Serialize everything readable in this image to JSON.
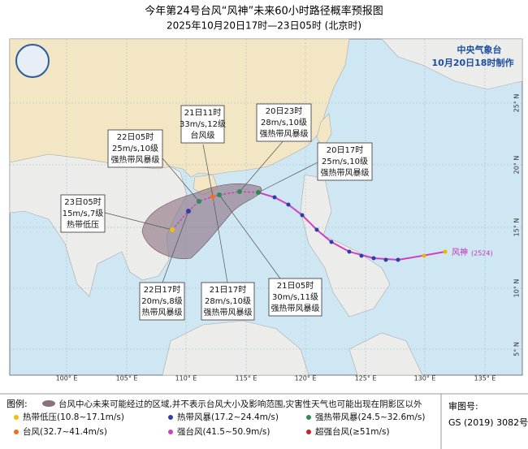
{
  "header": {
    "title": "今年第24号台风“风神”未来60小时路径概率预报图",
    "subtitle": "2025年10月20日17时—23日05时 (北京时)",
    "agency": "中央气象台",
    "made": "10月20日18时制作"
  },
  "storm_label": "风神",
  "storm_id": "(2524)",
  "forecasts": [
    {
      "time": "21日11时",
      "wind": "33m/s,12级",
      "level": "台风级"
    },
    {
      "time": "20日23时",
      "wind": "28m/s,10级",
      "level": "强热带风暴级"
    },
    {
      "time": "22日05时",
      "wind": "25m/s,10级",
      "level": "强热带风暴级"
    },
    {
      "time": "20日17时",
      "wind": "25m/s,10级",
      "level": "强热带风暴级"
    },
    {
      "time": "23日05时",
      "wind": "15m/s,7级",
      "level": "热带低压"
    },
    {
      "time": "22日17时",
      "wind": "20m/s,8级",
      "level": "热带风暴级"
    },
    {
      "time": "21日17时",
      "wind": "28m/s,10级",
      "level": "强热带风暴级"
    },
    {
      "time": "21日05时",
      "wind": "30m/s,11级",
      "level": "强热带风暴级"
    }
  ],
  "lon_labels": [
    "100° E",
    "105° E",
    "110° E",
    "115° E",
    "120° E",
    "125° E",
    "130° E",
    "135° E"
  ],
  "lat_labels": [
    "25° N",
    "20° N",
    "15° N",
    "10° N",
    "5° N"
  ],
  "legend": {
    "title": "图例:",
    "area": "台风中心未来可能经过的区域,并不表示台风大小及影响范围,灾害性天气也可能出现在阴影区以外",
    "items": [
      "热带低压(10.8~17.1m/s)",
      "热带风暴(17.2~24.4m/s)",
      "强热带风暴(24.5~32.6m/s)",
      "台风(32.7~41.4m/s)",
      "强台风(41.5~50.9m/s)",
      "超强台风(≥51m/s)"
    ]
  },
  "approval": {
    "title": "审图号:",
    "number": "GS (2019) 3082号"
  }
}
